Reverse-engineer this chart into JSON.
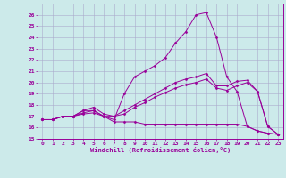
{
  "title": "",
  "xlabel": "Windchill (Refroidissement éolien,°C)",
  "bg_color": "#cceaea",
  "line_color": "#990099",
  "grid_color": "#aaaacc",
  "xlim": [
    -0.5,
    23.5
  ],
  "ylim": [
    15,
    27
  ],
  "xticks": [
    0,
    1,
    2,
    3,
    4,
    5,
    6,
    7,
    8,
    9,
    10,
    11,
    12,
    13,
    14,
    15,
    16,
    17,
    18,
    19,
    20,
    21,
    22,
    23
  ],
  "yticks": [
    15,
    16,
    17,
    18,
    19,
    20,
    21,
    22,
    23,
    24,
    25,
    26
  ],
  "lines": [
    {
      "x": [
        0,
        1,
        2,
        3,
        4,
        5,
        6,
        7,
        8,
        9,
        10,
        11,
        12,
        13,
        14,
        15,
        16,
        17,
        18,
        19,
        20,
        21,
        22,
        23
      ],
      "y": [
        16.7,
        16.7,
        17.0,
        17.0,
        17.2,
        17.3,
        17.0,
        16.7,
        19.0,
        20.5,
        21.0,
        21.5,
        22.2,
        23.5,
        24.5,
        26.0,
        26.2,
        24.0,
        20.5,
        19.2,
        16.1,
        15.7,
        15.5,
        15.4
      ]
    },
    {
      "x": [
        0,
        1,
        2,
        3,
        4,
        5,
        6,
        7,
        8,
        9,
        10,
        11,
        12,
        13,
        14,
        15,
        16,
        17,
        18,
        19,
        20,
        21,
        22,
        23
      ],
      "y": [
        16.7,
        16.7,
        17.0,
        17.0,
        17.3,
        17.5,
        17.0,
        16.5,
        16.5,
        16.5,
        16.3,
        16.3,
        16.3,
        16.3,
        16.3,
        16.3,
        16.3,
        16.3,
        16.3,
        16.3,
        16.1,
        15.7,
        15.5,
        15.4
      ]
    },
    {
      "x": [
        0,
        1,
        2,
        3,
        4,
        5,
        6,
        7,
        8,
        9,
        10,
        11,
        12,
        13,
        14,
        15,
        16,
        17,
        18,
        19,
        20,
        21,
        22,
        23
      ],
      "y": [
        16.7,
        16.7,
        17.0,
        17.0,
        17.5,
        17.8,
        17.2,
        17.0,
        17.5,
        18.0,
        18.5,
        19.0,
        19.5,
        20.0,
        20.3,
        20.5,
        20.8,
        19.7,
        19.7,
        20.1,
        20.2,
        19.2,
        16.1,
        15.4
      ]
    },
    {
      "x": [
        0,
        1,
        2,
        3,
        4,
        5,
        6,
        7,
        8,
        9,
        10,
        11,
        12,
        13,
        14,
        15,
        16,
        17,
        18,
        19,
        20,
        21,
        22,
        23
      ],
      "y": [
        16.7,
        16.7,
        17.0,
        17.0,
        17.5,
        17.5,
        17.0,
        17.0,
        17.2,
        17.8,
        18.2,
        18.7,
        19.1,
        19.5,
        19.8,
        20.0,
        20.3,
        19.5,
        19.3,
        19.7,
        20.0,
        19.2,
        16.1,
        15.4
      ]
    }
  ]
}
